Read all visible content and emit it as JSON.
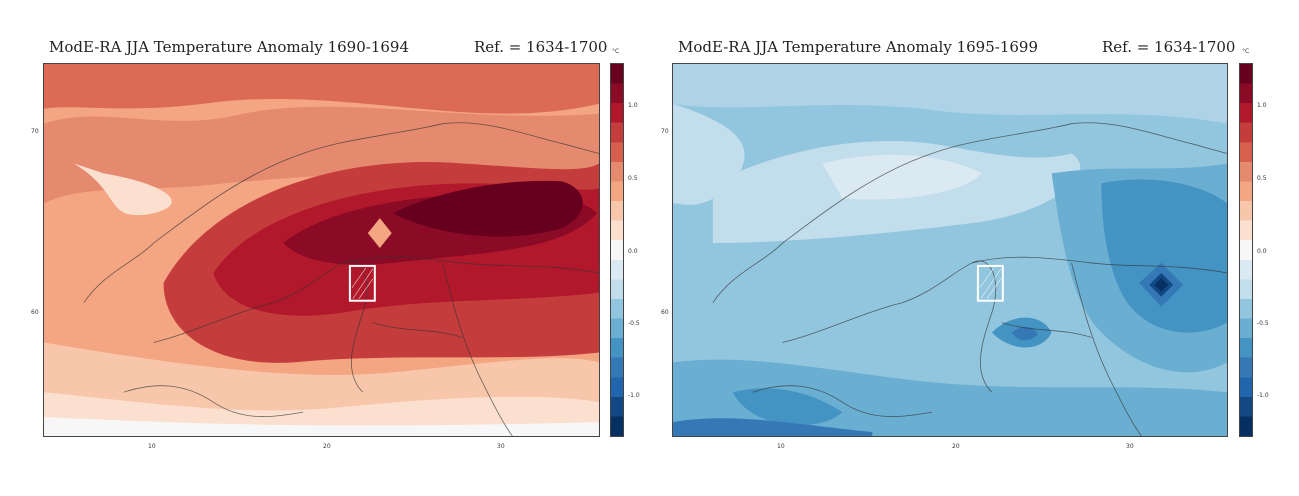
{
  "panels": [
    {
      "title": "ModE-RA JJA Temperature Anomaly 1690-1694",
      "ref": "Ref. = 1634-1700",
      "scheme": "warm"
    },
    {
      "title": "ModE-RA JJA Temperature Anomaly 1695-1699",
      "ref": "Ref. = 1634-1700",
      "scheme": "cool"
    }
  ],
  "colorbar": {
    "unit": "°C",
    "ticks": [
      "1.0",
      "0.5",
      "0.0",
      "-0.5",
      "-1.0"
    ],
    "colors": [
      "#67001f",
      "#8b0a25",
      "#b2182b",
      "#c43c3c",
      "#d6604d",
      "#e58a6e",
      "#f4a582",
      "#f8c7ab",
      "#fbe0cf",
      "#f7f7f7",
      "#dbe9f2",
      "#c2ddec",
      "#92c5de",
      "#6aaed2",
      "#4393c3",
      "#3479b6",
      "#2166ac",
      "#124883",
      "#053061"
    ]
  },
  "axes": {
    "lat_labels": [
      "70",
      "60"
    ],
    "lon_labels": [
      "10",
      "20",
      "30"
    ]
  }
}
